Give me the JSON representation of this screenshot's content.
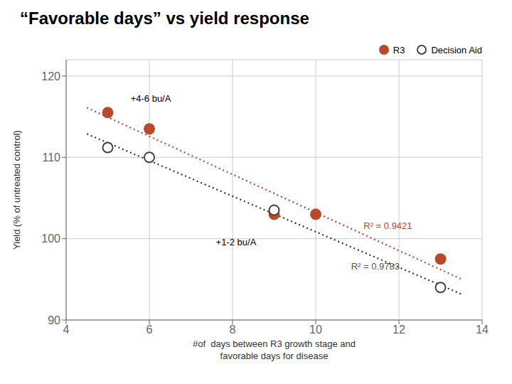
{
  "chart_data": {
    "type": "scatter",
    "title": "“Favorable days” vs yield response",
    "x_label": "#of  days between R3 growth stage and\nfavorable days for disease",
    "y_label": "Yield (% of untreated control)",
    "xlim": [
      4,
      14
    ],
    "ylim": [
      90,
      122
    ],
    "xticks": [
      4,
      6,
      8,
      10,
      12,
      14
    ],
    "yticks": [
      90,
      100,
      110,
      120
    ],
    "grid": true,
    "legend": "upper right",
    "series": [
      {
        "type": "line",
        "line_style": "dotted",
        "color": "#B84A2A",
        "x": [
          4.5,
          13.5
        ],
        "values": [
          116.1032,
          95.0231
        ]
      },
      {
        "type": "line",
        "line_style": "dotted",
        "color": "#333333",
        "x": [
          4.5,
          13.5
        ],
        "values": [
          112.879,
          93.1894
        ]
      },
      {
        "name": "R3",
        "type": "scatter",
        "marker": "circle",
        "color": "#B84A2A",
        "x": [
          5,
          6,
          9,
          10,
          13
        ],
        "values": [
          115.5,
          113.5,
          103.0,
          103.0,
          97.5
        ]
      },
      {
        "name": "Decision Aid",
        "type": "scatter",
        "marker": "open_circle",
        "color": "#444444",
        "x": [
          5,
          6,
          9,
          13
        ],
        "values": [
          111.2,
          110.0,
          103.5,
          94.0
        ]
      }
    ],
    "annotations": [
      {
        "text": "R² = 0.9421",
        "x": 11.15,
        "y": 101.2,
        "color": "#B84A2A"
      },
      {
        "text": "R² = 0.9783",
        "x": 10.85,
        "y": 96.2,
        "color": "#555555"
      },
      {
        "text": "+4-6 bu/A",
        "x": 5.55,
        "y": 116.8,
        "color": "black"
      },
      {
        "text": "+1-2 bu/A",
        "x": 7.6,
        "y": 99.2,
        "color": "black"
      }
    ]
  }
}
